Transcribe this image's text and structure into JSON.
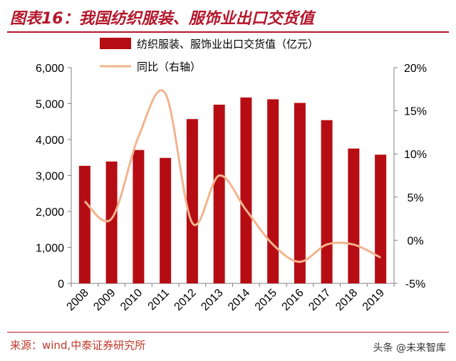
{
  "header": {
    "title": "图表16：我国纺织服装、服饰业出口交货值"
  },
  "footer": {
    "source": "来源：wind,中泰证券研究所",
    "watermark": "头条 @未来智库"
  },
  "colors": {
    "bar": "#b60d14",
    "line": "#f2b48e",
    "accent": "#b4172b"
  },
  "chart_data": {
    "type": "bar",
    "categories": [
      "2008",
      "2009",
      "2010",
      "2011",
      "2012",
      "2013",
      "2014",
      "2015",
      "2016",
      "2017",
      "2018",
      "2019"
    ],
    "series": [
      {
        "name": "纺织服装、服饰业出口交货值（亿元）",
        "type": "bar",
        "axis": "left",
        "values": [
          3270,
          3390,
          3710,
          3490,
          4570,
          4970,
          5170,
          5120,
          5020,
          4540,
          3750,
          3580
        ]
      },
      {
        "name": "同比（右轴）",
        "type": "line",
        "axis": "right",
        "values": [
          4.5,
          2.5,
          12.0,
          17.0,
          2.0,
          7.5,
          3.5,
          -0.5,
          -2.5,
          -0.5,
          -0.5,
          -2.0
        ]
      }
    ],
    "y_left": {
      "ylim": [
        0,
        6000
      ],
      "ticks": [
        "0",
        "1,000",
        "2,000",
        "3,000",
        "4,000",
        "5,000",
        "6,000"
      ]
    },
    "y_right": {
      "ylim": [
        -5,
        20
      ],
      "ticks": [
        "-5%",
        "0%",
        "5%",
        "10%",
        "15%",
        "20%"
      ]
    },
    "legend_position": "top-left",
    "grid": false
  }
}
